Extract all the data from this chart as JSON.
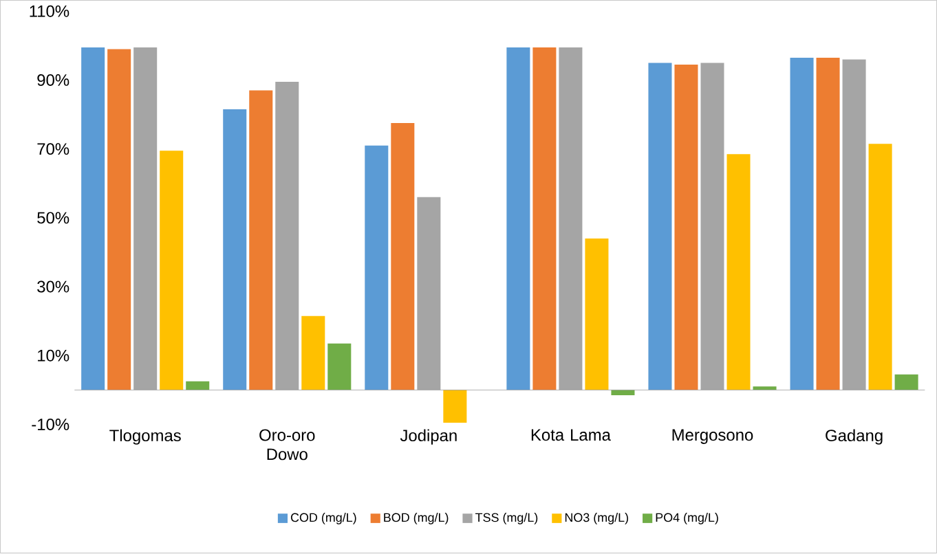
{
  "chart_data": {
    "type": "bar",
    "categories": [
      "Tlogomas",
      "Oro-oro Dowo",
      "Jodipan",
      "Kota Lama",
      "Mergosono",
      "Gadang"
    ],
    "series": [
      {
        "name": "COD (mg/L)",
        "color": "#5b9bd5",
        "values": [
          99.5,
          81.5,
          71,
          99.5,
          95,
          96.5
        ]
      },
      {
        "name": "BOD (mg/L)",
        "color": "#ed7d31",
        "values": [
          99,
          87,
          77.5,
          99.5,
          94.5,
          96.5
        ]
      },
      {
        "name": "TSS (mg/L)",
        "color": "#a5a5a5",
        "values": [
          99.5,
          89.5,
          56,
          99.5,
          95,
          96
        ]
      },
      {
        "name": "NO3 (mg/L)",
        "color": "#ffc000",
        "values": [
          69.5,
          21.5,
          -9.5,
          44,
          68.5,
          71.5
        ]
      },
      {
        "name": "PO4 (mg/L)",
        "color": "#70ad47",
        "values": [
          2.5,
          13.5,
          0,
          -1.5,
          1,
          4.5
        ]
      }
    ],
    "ylim": [
      -10,
      110
    ],
    "yticks": [
      {
        "value": -10,
        "label": "-10%"
      },
      {
        "value": 10,
        "label": "10%"
      },
      {
        "value": 30,
        "label": "30%"
      },
      {
        "value": 50,
        "label": "50%"
      },
      {
        "value": 70,
        "label": "70%"
      },
      {
        "value": 90,
        "label": "90%"
      },
      {
        "value": 110,
        "label": "110%"
      }
    ],
    "grid": false,
    "legend": "bottom"
  }
}
